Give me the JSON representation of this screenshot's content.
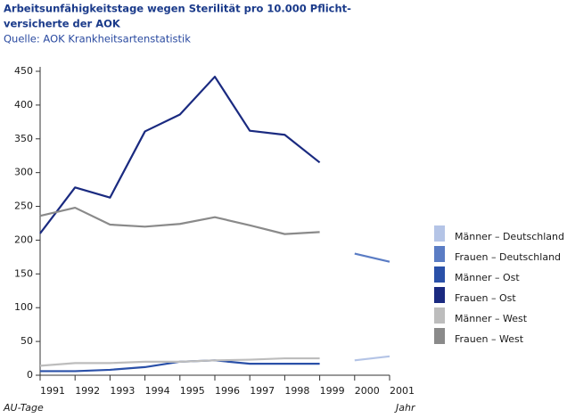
{
  "chart_data": {
    "type": "line",
    "title": "Arbeitsunfähigkeitstage wegen Sterilität pro 10.000 Pflicht-",
    "title_line2": "versicherte der AOK",
    "subtitle": "Quelle: AOK Krankheitsartenstatistik",
    "y_label": "AU-Tage",
    "x_label": "Jahr",
    "x": [
      1991,
      1992,
      1993,
      1994,
      1995,
      1996,
      1997,
      1998,
      1999,
      2000,
      2001
    ],
    "xlim": [
      1991,
      2001
    ],
    "xticks": [
      1991,
      1992,
      1993,
      1994,
      1995,
      1996,
      1997,
      1998,
      1999,
      2000,
      2001
    ],
    "ylim": [
      0,
      450
    ],
    "yticks": [
      0,
      50,
      100,
      150,
      200,
      250,
      300,
      350,
      400,
      450
    ],
    "grid": false,
    "legend": "right",
    "series": [
      {
        "name": "Männer – Deutschland",
        "color": "#b4c4e6",
        "values": [
          null,
          null,
          null,
          null,
          null,
          null,
          null,
          null,
          null,
          22,
          28
        ]
      },
      {
        "name": "Frauen – Deutschland",
        "color": "#5a7cc4",
        "values": [
          null,
          null,
          null,
          null,
          null,
          null,
          null,
          null,
          null,
          180,
          168
        ]
      },
      {
        "name": "Männer – Ost",
        "color": "#2a50a8",
        "values": [
          6,
          6,
          8,
          12,
          20,
          22,
          17,
          17,
          17,
          null,
          null
        ]
      },
      {
        "name": "Frauen – Ost",
        "color": "#1a2a80",
        "values": [
          210,
          278,
          263,
          361,
          386,
          442,
          362,
          356,
          315,
          null,
          null
        ]
      },
      {
        "name": "Männer – West",
        "color": "#bdbdbd",
        "values": [
          14,
          18,
          18,
          20,
          20,
          22,
          23,
          25,
          25,
          null,
          null
        ]
      },
      {
        "name": "Frauen – West",
        "color": "#8a8a8a",
        "values": [
          236,
          248,
          223,
          220,
          224,
          234,
          222,
          209,
          212,
          null,
          null
        ]
      }
    ]
  }
}
